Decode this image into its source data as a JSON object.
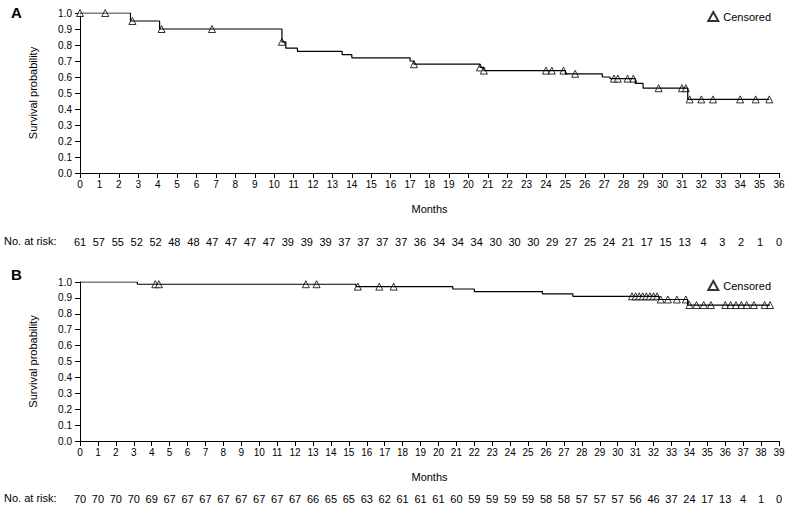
{
  "chart_data": [
    {
      "type": "line",
      "title": "A",
      "xlabel": "Months",
      "ylabel": "Survival probability",
      "xlim": [
        0,
        36
      ],
      "xticks": [
        0,
        1,
        2,
        3,
        4,
        5,
        6,
        7,
        8,
        9,
        10,
        11,
        12,
        13,
        14,
        15,
        16,
        17,
        18,
        19,
        20,
        21,
        22,
        23,
        24,
        25,
        26,
        27,
        28,
        29,
        30,
        31,
        32,
        33,
        34,
        35,
        36
      ],
      "ylim": [
        0,
        1
      ],
      "yticks": [
        {
          "value": 0,
          "label": "0.0"
        },
        0.1,
        0.2,
        0.3,
        0.4,
        0.5,
        0.6,
        0.7,
        0.8,
        0.9,
        {
          "value": 1,
          "label": "1.0"
        }
      ],
      "grid": false,
      "legend": "upper right",
      "series": [
        {
          "type": "step",
          "color": "#000000",
          "line_style": "solid",
          "x": [
            0,
            2.6,
            4.1,
            10.4,
            10.6,
            11.2,
            13.5,
            14.0,
            17.0,
            17.2,
            20.6,
            20.8,
            25.0,
            26.9,
            27.3,
            28.6,
            29.0,
            31.3,
            35.5
          ],
          "values": [
            1.0,
            0.95,
            0.9,
            0.82,
            0.78,
            0.76,
            0.74,
            0.72,
            0.7,
            0.68,
            0.66,
            0.64,
            0.62,
            0.6,
            0.59,
            0.56,
            0.53,
            0.46,
            0.46
          ]
        },
        {
          "name": "Censored",
          "type": "scatter",
          "marker": "triangle",
          "color": "#000000",
          "x": [
            0,
            1.3,
            2.7,
            4.2,
            6.8,
            10.4,
            17.2,
            20.6,
            20.8,
            24.0,
            24.3,
            24.9,
            25.5,
            27.5,
            27.7,
            28.2,
            28.5,
            29.8,
            31.0,
            31.2,
            31.4,
            32.0,
            32.6,
            34.0,
            34.8,
            35.5
          ],
          "values": [
            1.0,
            1.0,
            0.95,
            0.9,
            0.9,
            0.82,
            0.68,
            0.66,
            0.64,
            0.64,
            0.64,
            0.64,
            0.62,
            0.59,
            0.59,
            0.59,
            0.59,
            0.53,
            0.53,
            0.53,
            0.46,
            0.46,
            0.46,
            0.46,
            0.46,
            0.46
          ]
        }
      ],
      "at_risk": {
        "label": "No. at risk:",
        "x": [
          0,
          0.97,
          1.95,
          2.92,
          3.89,
          4.86,
          5.84,
          6.81,
          7.78,
          8.76,
          9.73,
          10.7,
          11.68,
          12.65,
          13.62,
          14.59,
          15.57,
          16.54,
          17.51,
          18.49,
          19.46,
          20.43,
          21.41,
          22.38,
          23.35,
          24.32,
          25.3,
          26.27,
          27.24,
          28.22,
          29.19,
          30.16,
          31.14,
          32.11,
          33.08,
          34.05,
          35.03,
          36
        ],
        "values": [
          61,
          57,
          55,
          52,
          52,
          48,
          48,
          47,
          47,
          47,
          47,
          39,
          39,
          39,
          37,
          37,
          37,
          37,
          36,
          34,
          34,
          34,
          30,
          30,
          30,
          29,
          27,
          25,
          24,
          21,
          17,
          15,
          13,
          4,
          3,
          2,
          1,
          0
        ]
      }
    },
    {
      "type": "line",
      "title": "B",
      "xlabel": "Months",
      "ylabel": "Survival probability",
      "xlim": [
        0,
        39
      ],
      "xticks": [
        0,
        1,
        2,
        3,
        4,
        5,
        6,
        7,
        8,
        9,
        10,
        11,
        12,
        13,
        14,
        15,
        16,
        17,
        18,
        19,
        20,
        21,
        22,
        23,
        24,
        25,
        26,
        27,
        28,
        29,
        30,
        31,
        32,
        33,
        34,
        35,
        36,
        37,
        38,
        39
      ],
      "ylim": [
        0,
        1
      ],
      "yticks": [
        {
          "value": 0,
          "label": "0.0"
        },
        0.1,
        0.2,
        0.3,
        0.4,
        0.5,
        0.6,
        0.7,
        0.8,
        0.9,
        {
          "value": 1,
          "label": "1.0"
        }
      ],
      "grid": false,
      "legend": "upper right",
      "series": [
        {
          "type": "step",
          "color": "#000000",
          "line_style": "solid",
          "x": [
            0,
            3.2,
            15.4,
            20.8,
            22.0,
            25.8,
            27.5,
            32.3,
            33.9,
            38.5
          ],
          "values": [
            1.0,
            0.986,
            0.971,
            0.956,
            0.94,
            0.925,
            0.91,
            0.89,
            0.855,
            0.855
          ]
        },
        {
          "name": "Censored",
          "type": "scatter",
          "marker": "triangle",
          "color": "#000000",
          "x": [
            4.2,
            4.4,
            12.6,
            13.2,
            15.5,
            16.7,
            17.5,
            30.8,
            31.0,
            31.2,
            31.4,
            31.6,
            31.8,
            32.0,
            32.2,
            32.4,
            32.8,
            33.3,
            33.8,
            34.0,
            34.4,
            34.8,
            35.2,
            36.0,
            36.3,
            36.6,
            36.9,
            37.2,
            37.6,
            38.2,
            38.5
          ],
          "values": [
            0.986,
            0.986,
            0.986,
            0.986,
            0.971,
            0.971,
            0.971,
            0.91,
            0.91,
            0.91,
            0.91,
            0.91,
            0.91,
            0.91,
            0.91,
            0.89,
            0.89,
            0.89,
            0.89,
            0.855,
            0.855,
            0.855,
            0.855,
            0.855,
            0.855,
            0.855,
            0.855,
            0.855,
            0.855,
            0.855,
            0.855
          ]
        }
      ],
      "at_risk": {
        "label": "No. at risk:",
        "x": [
          0,
          1,
          2,
          3,
          4,
          5,
          6,
          7,
          8,
          9,
          10,
          11,
          12,
          13,
          14,
          15,
          16,
          17,
          18,
          19,
          20,
          21,
          22,
          23,
          24,
          25,
          26,
          27,
          28,
          29,
          30,
          31,
          32,
          33,
          34,
          35,
          36,
          37,
          38,
          39
        ],
        "values": [
          70,
          70,
          70,
          70,
          69,
          67,
          67,
          67,
          67,
          67,
          67,
          67,
          67,
          66,
          65,
          65,
          63,
          62,
          61,
          61,
          61,
          60,
          59,
          59,
          59,
          59,
          58,
          58,
          57,
          57,
          57,
          56,
          46,
          37,
          24,
          17,
          13,
          4,
          1,
          0
        ]
      }
    }
  ]
}
